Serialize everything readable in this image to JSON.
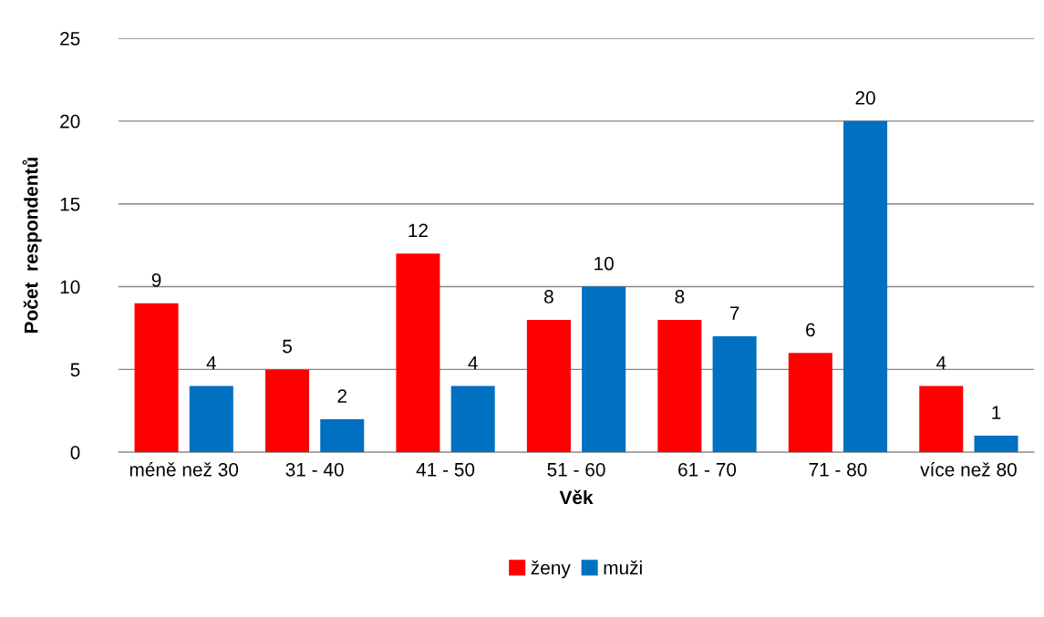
{
  "chart_data": {
    "type": "bar",
    "xlabel": "Věk",
    "ylabel": "Počet  respondentů",
    "categories": [
      "méně než 30",
      "31 - 40",
      "41 - 50",
      "51 - 60",
      "61 - 70",
      "71 - 80",
      "více než 80"
    ],
    "series": [
      {
        "name": "ženy",
        "color": "#ff0000",
        "values": [
          9,
          5,
          12,
          8,
          8,
          6,
          4
        ]
      },
      {
        "name": "muži",
        "color": "#0070c0",
        "values": [
          4,
          2,
          4,
          10,
          7,
          20,
          1
        ]
      }
    ],
    "ylim": [
      0,
      25
    ],
    "yticks": [
      0,
      5,
      10,
      15,
      20,
      25
    ],
    "grid": "y",
    "legend": "bottom",
    "data_labels": true
  }
}
